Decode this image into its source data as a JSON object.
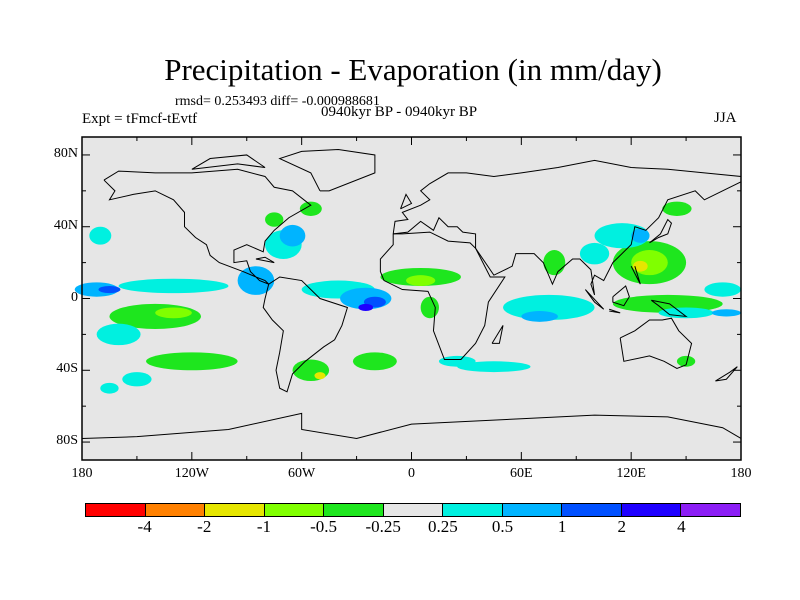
{
  "title": "Precipitation - Evaporation (in mm/day)",
  "stats": "rmsd= 0.253493 diff= -0.000988681",
  "experiment": "Expt = tFmcf-tEvtf",
  "period": "0940kyr BP - 0940kyr BP",
  "season": "JJA",
  "y_axis_labels": [
    "80N",
    "40N",
    "0",
    "40S",
    "80S"
  ],
  "x_axis_labels": [
    "180",
    "120W",
    "60W",
    "0",
    "60E",
    "120E",
    "180"
  ],
  "colorbar": {
    "colors": [
      "#ff0000",
      "#ff8000",
      "#e6e600",
      "#80ff00",
      "#1ee61e",
      "#e6e6e6",
      "#00f0e0",
      "#00b4ff",
      "#0050ff",
      "#1e00ff",
      "#8c1ef5"
    ],
    "labels": [
      "-4",
      "-2",
      "-1",
      "-0.5",
      "-0.25",
      "0.25",
      "0.5",
      "1",
      "2",
      "4"
    ]
  }
}
